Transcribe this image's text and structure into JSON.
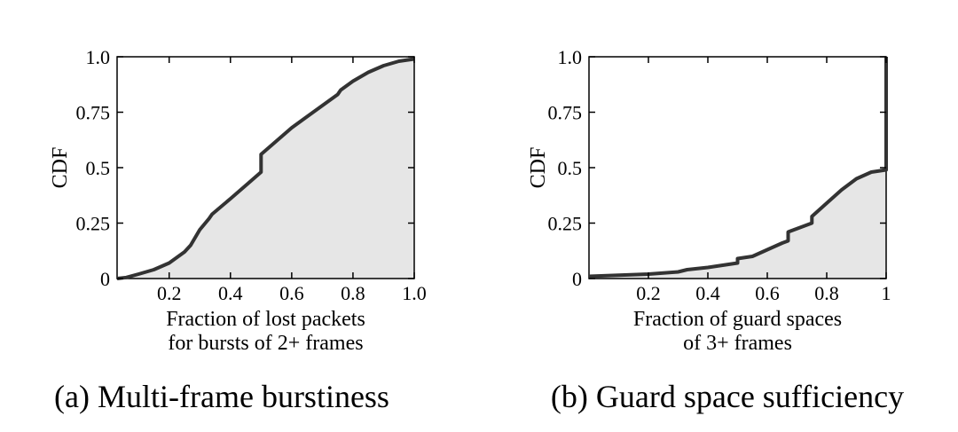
{
  "chart_data": [
    {
      "type": "area",
      "ylabel": "CDF",
      "xlabel": [
        "Fraction of lost packets",
        "for bursts of 2+ frames"
      ],
      "caption": "(a) Multi-frame burstiness",
      "xlim": [
        0.03,
        1.0
      ],
      "ylim": [
        0,
        1.0
      ],
      "xticks": [
        0.2,
        0.4,
        0.6,
        0.8,
        1.0
      ],
      "xtick_labels": [
        "0.2",
        "0.4",
        "0.6",
        "0.8",
        "1.0"
      ],
      "yticks": [
        0,
        0.25,
        0.5,
        0.75,
        1.0
      ],
      "ytick_labels": [
        "0",
        "0.25",
        "0.5",
        "0.75",
        "1.0"
      ],
      "x": [
        0.03,
        0.06,
        0.1,
        0.15,
        0.2,
        0.25,
        0.27,
        0.3,
        0.33,
        0.34,
        0.4,
        0.45,
        0.5,
        0.5,
        0.55,
        0.6,
        0.65,
        0.7,
        0.75,
        0.76,
        0.8,
        0.85,
        0.9,
        0.95,
        1.0
      ],
      "y": [
        0.0,
        0.005,
        0.02,
        0.04,
        0.07,
        0.12,
        0.15,
        0.22,
        0.27,
        0.29,
        0.36,
        0.42,
        0.48,
        0.56,
        0.62,
        0.68,
        0.73,
        0.78,
        0.83,
        0.85,
        0.89,
        0.93,
        0.96,
        0.98,
        0.99
      ]
    },
    {
      "type": "area",
      "ylabel": "CDF",
      "xlabel": [
        "Fraction of guard spaces",
        "of 3+ frames"
      ],
      "caption": "(b) Guard space sufficiency",
      "xlim": [
        0.0,
        1.0
      ],
      "ylim": [
        0,
        1.0
      ],
      "xticks": [
        0.2,
        0.4,
        0.6,
        0.8,
        1.0
      ],
      "xtick_labels": [
        "0.2",
        "0.4",
        "0.6",
        "0.8",
        "1"
      ],
      "yticks": [
        0,
        0.25,
        0.5,
        0.75,
        1.0
      ],
      "ytick_labels": [
        "0",
        "0.25",
        "0.5",
        "0.75",
        "1.0"
      ],
      "x": [
        0.0,
        0.1,
        0.2,
        0.3,
        0.33,
        0.4,
        0.5,
        0.5,
        0.55,
        0.6,
        0.65,
        0.67,
        0.67,
        0.75,
        0.75,
        0.8,
        0.85,
        0.9,
        0.95,
        1.0,
        1.0
      ],
      "y": [
        0.01,
        0.015,
        0.02,
        0.03,
        0.04,
        0.05,
        0.07,
        0.09,
        0.1,
        0.13,
        0.16,
        0.17,
        0.21,
        0.25,
        0.28,
        0.34,
        0.4,
        0.45,
        0.48,
        0.49,
        1.0
      ]
    }
  ]
}
